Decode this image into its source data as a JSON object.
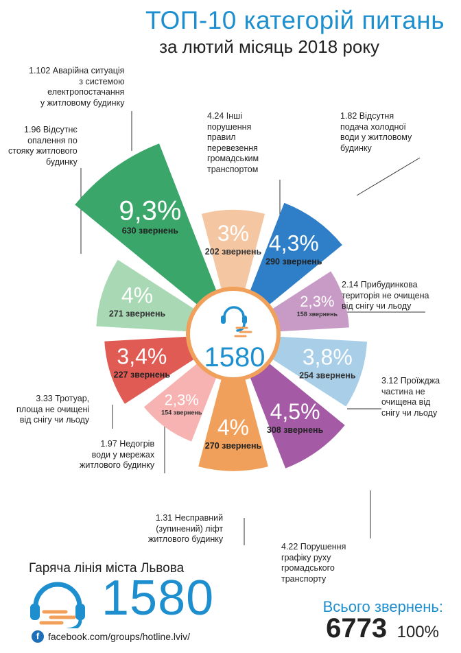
{
  "header": {
    "title": "ТОП-10 категорій питань",
    "subtitle": "за лютий місяць 2018 року"
  },
  "center": {
    "number": "1580",
    "icon": "headset-icon"
  },
  "chart_data": {
    "type": "pie",
    "title": "ТОП-10 категорій питань",
    "unit_label": "звернень",
    "categories": [
      {
        "code": "4.24",
        "name": "Інші порушення правил перевезення громадським транспортом",
        "label": "4.24 Інші\nпорушення\nправил\nперевезення\nгромадським\nтранспортом",
        "pct_text": "3%",
        "count_text": "202 звернень",
        "value": 202,
        "color": "#f5c6a2"
      },
      {
        "code": "1.82",
        "name": "Відсутня подача холодної води у житловому будинку",
        "label": "1.82 Відсутня\nподача холодної\nводи у  житловому\nбудинку",
        "pct_text": "4,3%",
        "count_text": "290 звернень",
        "value": 290,
        "color": "#2e7fc8"
      },
      {
        "code": "2.14",
        "name": "Прибудинкова територія не очищена від снігу чи льоду",
        "label": "2.14 Прибудинкова\nтериторія не очищена\nвід снігу чи льоду",
        "pct_text": "2,3%",
        "count_text": "158 звернень",
        "value": 158,
        "color": "#c79bc6"
      },
      {
        "code": "3.12",
        "name": "Проїжджа частина не очищена від снігу чи льоду",
        "label": "3.12 Проїжджа\nчастина не\nочищена від\nснігу чи льоду",
        "pct_text": "3,8%",
        "count_text": "254 звернень",
        "value": 254,
        "color": "#a9cfe8"
      },
      {
        "code": "4.22",
        "name": "Порушення графіку руху громадського транспорту",
        "label": "4.22 Порушення\nграфіку руху\nгромадського\nтранспорту",
        "pct_text": "4,5%",
        "count_text": "308 звернень",
        "value": 308,
        "color": "#a45aa4"
      },
      {
        "code": "1.31",
        "name": "Несправний (зупинений) ліфт житлового будинку",
        "label": "1.31 Несправний\n(зупинений) ліфт\nжитлового будинку",
        "pct_text": "4%",
        "count_text": "270 звернень",
        "value": 270,
        "color": "#f0a05a"
      },
      {
        "code": "1.97",
        "name": "Недогрів води у мережах житлового будинку",
        "label": "1.97 Недогрів\nводи у мережах\nжитлового будинку",
        "pct_text": "2,3%",
        "count_text": "154 звернень",
        "value": 154,
        "color": "#f7b2b2"
      },
      {
        "code": "3.33",
        "name": "Тротуар, площа не очищені від снігу чи льоду",
        "label": "3.33 Тротуар,\nплоща не очищені\nвід снігу чи льоду",
        "pct_text": "3,4%",
        "count_text": "227 звернень",
        "value": 227,
        "color": "#e15b55"
      },
      {
        "code": "1.96",
        "name": "Відсутнє опалення по стояку житлового будинку",
        "label": "1.96 Відсутнє\nопалення по\nстояку житлового\nбудинку",
        "pct_text": "4%",
        "count_text": "271 звернень",
        "value": 271,
        "color": "#a8d8b4"
      },
      {
        "code": "1.102",
        "name": "Аварійна ситуація з системою електропостачання у житловому будинку",
        "label": "1.102 Аварійна ситуація\nз системою\nелектропостачання\nу житловому будинку",
        "pct_text": "9,3%",
        "count_text": "630 звернень",
        "value": 630,
        "color": "#3aa66a"
      }
    ]
  },
  "footer": {
    "hotline_title": "Гаряча лінія міста Львова",
    "hotline_number": "1580",
    "facebook_link": "facebook.com/groups/hotline.lviv/",
    "total_label": "Всього звернень:",
    "total_value": "6773",
    "total_percent": "100%"
  }
}
